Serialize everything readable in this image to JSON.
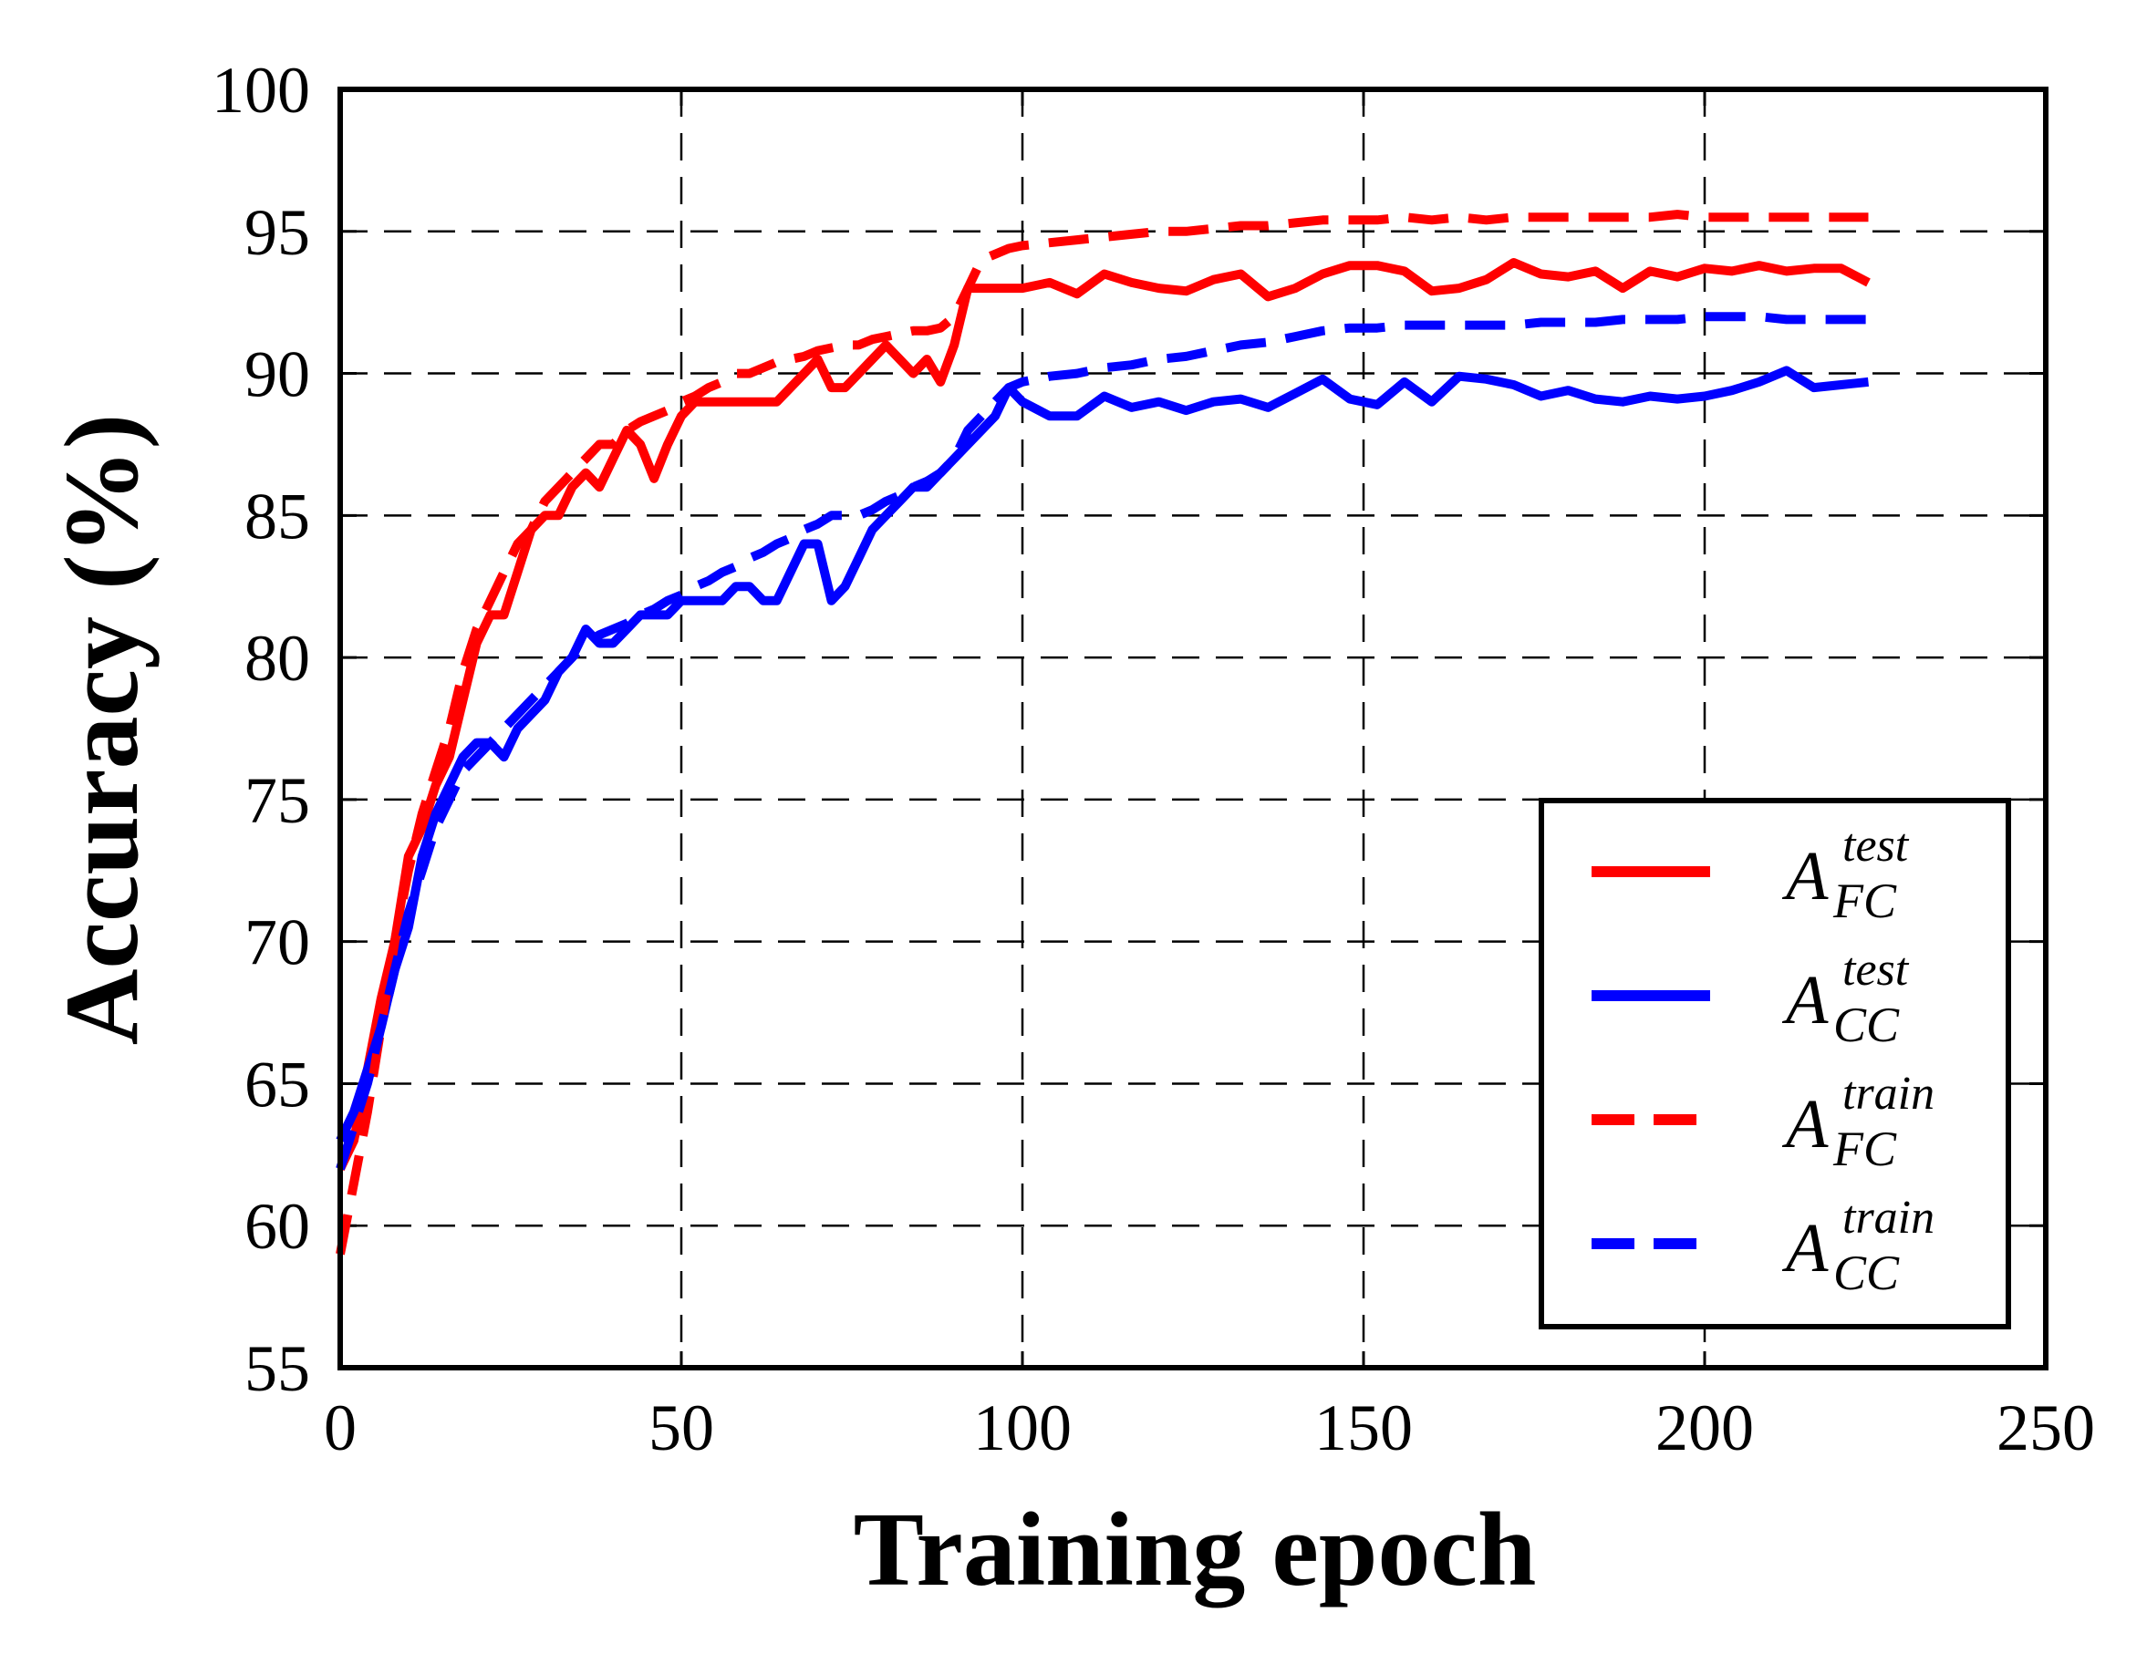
{
  "chart_data": {
    "type": "line",
    "title": "",
    "xlabel": "Training epoch",
    "ylabel": "Accuracy (%)",
    "xlim": [
      0,
      250
    ],
    "ylim": [
      55,
      100
    ],
    "xticks": [
      "0",
      "50",
      "100",
      "150",
      "200",
      "250"
    ],
    "yticks": [
      "55",
      "60",
      "65",
      "70",
      "75",
      "80",
      "85",
      "90",
      "95",
      "100"
    ],
    "grid": true,
    "legend_position": "lower-right",
    "series": [
      {
        "name": "A_FC^test",
        "label_base": "A",
        "label_sub": "FC",
        "label_sup": "test",
        "color": "#ff0000",
        "style": "solid",
        "x": [
          0,
          2,
          4,
          6,
          8,
          10,
          12,
          14,
          16,
          18,
          20,
          22,
          24,
          26,
          28,
          30,
          32,
          34,
          36,
          38,
          40,
          42,
          44,
          46,
          48,
          50,
          52,
          54,
          56,
          58,
          60,
          62,
          64,
          66,
          68,
          70,
          72,
          74,
          76,
          78,
          80,
          82,
          84,
          86,
          88,
          90,
          92,
          94,
          96,
          98,
          100,
          104,
          108,
          112,
          116,
          120,
          124,
          128,
          132,
          136,
          140,
          144,
          148,
          152,
          156,
          160,
          164,
          168,
          172,
          176,
          180,
          184,
          188,
          192,
          196,
          200,
          204,
          208,
          212,
          216,
          220,
          224
        ],
        "y": [
          62,
          63,
          65.5,
          68,
          70,
          73,
          74,
          75.5,
          76.5,
          78.5,
          80.5,
          81.5,
          81.5,
          83,
          84.5,
          85,
          85,
          86,
          86.5,
          86,
          87,
          88,
          87.5,
          86.3,
          87.5,
          88.5,
          89,
          89,
          89,
          89,
          89,
          89,
          89,
          89.5,
          90,
          90.5,
          89.5,
          89.5,
          90,
          90.5,
          91,
          90.5,
          90,
          90.5,
          89.7,
          91,
          93,
          93,
          93,
          93,
          93,
          93.2,
          92.8,
          93.5,
          93.2,
          93,
          92.9,
          93.3,
          93.5,
          92.7,
          93,
          93.5,
          93.8,
          93.8,
          93.6,
          92.9,
          93,
          93.3,
          93.9,
          93.5,
          93.4,
          93.6,
          93,
          93.6,
          93.4,
          93.7,
          93.6,
          93.8,
          93.6,
          93.7,
          93.7,
          93.2
        ]
      },
      {
        "name": "A_CC^test",
        "label_base": "A",
        "label_sub": "CC",
        "label_sup": "test",
        "color": "#0000ff",
        "style": "solid",
        "x": [
          0,
          2,
          4,
          6,
          8,
          10,
          12,
          14,
          16,
          18,
          20,
          22,
          24,
          26,
          28,
          30,
          32,
          34,
          36,
          38,
          40,
          42,
          44,
          46,
          48,
          50,
          52,
          54,
          56,
          58,
          60,
          62,
          64,
          66,
          68,
          70,
          72,
          74,
          76,
          78,
          80,
          82,
          84,
          86,
          88,
          90,
          92,
          94,
          96,
          98,
          100,
          104,
          108,
          112,
          116,
          120,
          124,
          128,
          132,
          136,
          140,
          144,
          148,
          152,
          156,
          160,
          164,
          168,
          172,
          176,
          180,
          184,
          188,
          192,
          196,
          200,
          204,
          208,
          212,
          216,
          220,
          224
        ],
        "y": [
          63,
          64,
          65.5,
          67,
          69,
          70.5,
          73,
          74.5,
          75.5,
          76.5,
          77,
          77,
          76.5,
          77.5,
          78,
          78.5,
          79.5,
          80,
          81,
          80.5,
          80.5,
          81,
          81.5,
          81.5,
          81.5,
          82,
          82,
          82,
          82,
          82.5,
          82.5,
          82,
          82,
          83,
          84,
          84,
          82,
          82.5,
          83.5,
          84.5,
          85,
          85.5,
          86,
          86,
          86.5,
          87,
          87.5,
          88,
          88.5,
          89.5,
          89,
          88.5,
          88.5,
          89.2,
          88.8,
          89,
          88.7,
          89,
          89.1,
          88.8,
          89.3,
          89.8,
          89.1,
          88.9,
          89.7,
          89,
          89.9,
          89.8,
          89.6,
          89.2,
          89.4,
          89.1,
          89,
          89.2,
          89.1,
          89.2,
          89.4,
          89.7,
          90.1,
          89.5,
          89.6,
          89.7
        ]
      },
      {
        "name": "A_FC^train",
        "label_base": "A",
        "label_sub": "FC",
        "label_sup": "train",
        "color": "#ff0000",
        "style": "dashed",
        "x": [
          0,
          2,
          4,
          6,
          8,
          10,
          12,
          14,
          16,
          18,
          20,
          22,
          24,
          26,
          28,
          30,
          32,
          34,
          36,
          38,
          40,
          42,
          44,
          46,
          48,
          50,
          52,
          54,
          56,
          58,
          60,
          62,
          64,
          66,
          68,
          70,
          72,
          74,
          76,
          78,
          80,
          82,
          84,
          86,
          88,
          90,
          92,
          94,
          96,
          98,
          100,
          104,
          108,
          112,
          116,
          120,
          124,
          128,
          132,
          136,
          140,
          144,
          148,
          152,
          156,
          160,
          164,
          168,
          172,
          176,
          180,
          184,
          188,
          192,
          196,
          200,
          204,
          208,
          212,
          216,
          220,
          224
        ],
        "y": [
          59,
          61.5,
          64,
          67,
          70,
          72.5,
          74.5,
          76,
          77.5,
          79.5,
          81,
          82,
          83,
          84,
          84.5,
          85.5,
          86,
          86.5,
          87,
          87.5,
          87.5,
          88,
          88.3,
          88.5,
          88.7,
          89,
          89.2,
          89.5,
          89.7,
          90,
          90,
          90.2,
          90.4,
          90.5,
          90.6,
          90.8,
          90.9,
          91,
          91,
          91.2,
          91.3,
          91.4,
          91.5,
          91.5,
          91.6,
          92,
          93,
          94,
          94.2,
          94.4,
          94.5,
          94.6,
          94.7,
          94.8,
          94.9,
          95,
          95,
          95.1,
          95.2,
          95.2,
          95.3,
          95.4,
          95.4,
          95.4,
          95.5,
          95.4,
          95.5,
          95.4,
          95.5,
          95.5,
          95.5,
          95.5,
          95.5,
          95.5,
          95.6,
          95.5,
          95.5,
          95.5,
          95.5,
          95.5,
          95.5,
          95.5
        ]
      },
      {
        "name": "A_CC^train",
        "label_base": "A",
        "label_sub": "CC",
        "label_sup": "train",
        "color": "#0000ff",
        "style": "dashed",
        "x": [
          0,
          2,
          4,
          6,
          8,
          10,
          12,
          14,
          16,
          18,
          20,
          22,
          24,
          26,
          28,
          30,
          32,
          34,
          36,
          38,
          40,
          42,
          44,
          46,
          48,
          50,
          52,
          54,
          56,
          58,
          60,
          62,
          64,
          66,
          68,
          70,
          72,
          74,
          76,
          78,
          80,
          82,
          84,
          86,
          88,
          90,
          92,
          94,
          96,
          98,
          100,
          104,
          108,
          112,
          116,
          120,
          124,
          128,
          132,
          136,
          140,
          144,
          148,
          152,
          156,
          160,
          164,
          168,
          172,
          176,
          180,
          184,
          188,
          192,
          196,
          200,
          204,
          208,
          212,
          216,
          220,
          224
        ],
        "y": [
          62,
          63.5,
          65,
          67,
          69,
          71,
          72.5,
          74,
          75,
          76,
          76.5,
          77,
          77.5,
          78,
          78.5,
          79,
          79.5,
          80,
          80.5,
          80.8,
          81,
          81.2,
          81.5,
          81.7,
          82,
          82.2,
          82.5,
          82.7,
          83,
          83.2,
          83.5,
          83.7,
          84,
          84.2,
          84.5,
          84.7,
          85,
          85,
          85,
          85.2,
          85.5,
          85.7,
          86,
          86.2,
          86.5,
          87,
          88,
          88.5,
          89,
          89.5,
          89.7,
          89.9,
          90,
          90.2,
          90.3,
          90.5,
          90.6,
          90.8,
          91,
          91.1,
          91.3,
          91.5,
          91.6,
          91.6,
          91.7,
          91.7,
          91.7,
          91.7,
          91.7,
          91.8,
          91.8,
          91.8,
          91.9,
          91.9,
          91.9,
          92,
          92,
          92,
          91.9,
          91.9,
          91.9,
          91.9
        ]
      }
    ]
  }
}
